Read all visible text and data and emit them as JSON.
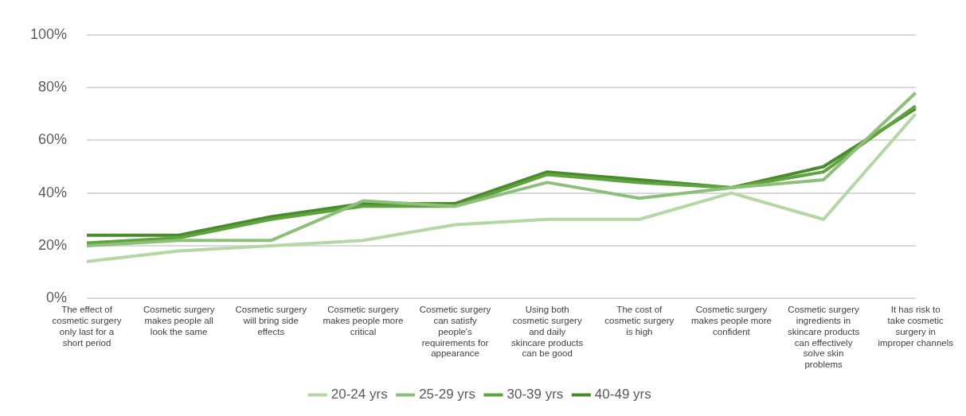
{
  "chart_data": {
    "type": "line",
    "categories": [
      "The effect of cosmetic surgery only last for a short period",
      "Cosmetic surgery makes people all look the same",
      "Cosmetic surgery will bring side effects",
      "Cosmetic surgery makes people more critical",
      "Cosmetic surgery can satisfy people's requirements for appearance",
      "Using both cosmetic surgery and daily skincare products can be good",
      "The cost of cosmetic surgery is high",
      "Cosmetic surgery makes people more confident",
      "Cosmetic surgery ingredients in skincare products can effectively solve skin problems",
      "It has risk to take cosmetic surgery in improper channels"
    ],
    "series": [
      {
        "name": "20-24 yrs",
        "color": "#b5d6a5",
        "values": [
          14,
          18,
          20,
          22,
          28,
          30,
          30,
          40,
          30,
          70
        ]
      },
      {
        "name": "25-29 yrs",
        "color": "#8cc07a",
        "values": [
          20,
          22,
          22,
          37,
          35,
          44,
          38,
          42,
          45,
          78
        ]
      },
      {
        "name": "30-39 yrs",
        "color": "#5ea33c",
        "values": [
          21,
          23,
          30,
          35,
          35,
          47,
          44,
          42,
          48,
          73
        ]
      },
      {
        "name": "40-49 yrs",
        "color": "#4a8a2e",
        "values": [
          24,
          24,
          31,
          36,
          36,
          48,
          45,
          42,
          50,
          72
        ]
      }
    ],
    "ylim": [
      0,
      100
    ],
    "yticks": [
      {
        "value": 0,
        "label": "0%"
      },
      {
        "value": 20,
        "label": "20%"
      },
      {
        "value": 40,
        "label": "40%"
      },
      {
        "value": 60,
        "label": "60%"
      },
      {
        "value": 80,
        "label": "80%"
      },
      {
        "value": 100,
        "label": "100%"
      }
    ],
    "grid": "y",
    "legend": "bottom",
    "marker": "none"
  }
}
